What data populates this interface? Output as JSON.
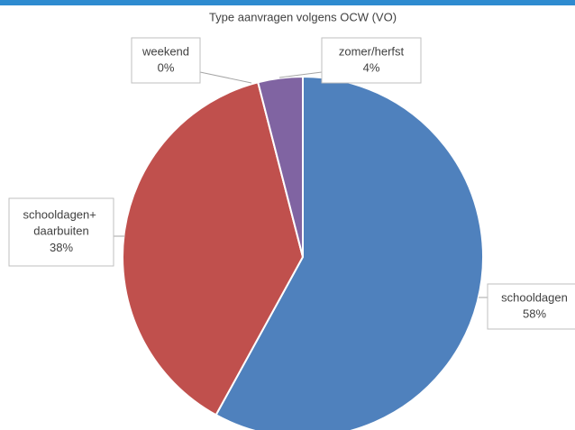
{
  "chart_data": {
    "type": "pie",
    "title": "Type aanvragen volgens OCW (VO)",
    "categories": [
      "schooldagen",
      "schooldagen+ daarbuiten",
      "weekend",
      "zomer/herfst"
    ],
    "values": [
      58,
      38,
      0,
      4
    ],
    "value_labels": [
      "58%",
      "38%",
      "0%",
      "4%"
    ],
    "colors": [
      "#4f81bd",
      "#c0504d",
      "#9bbb59",
      "#8064a2"
    ]
  }
}
